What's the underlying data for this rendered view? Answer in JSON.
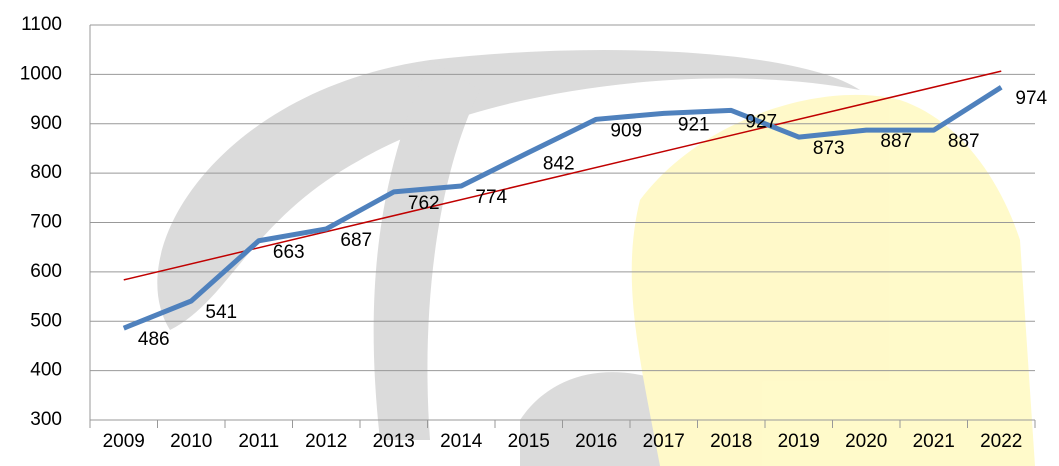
{
  "chart_data": {
    "type": "line",
    "categories": [
      "2009",
      "2010",
      "2011",
      "2012",
      "2013",
      "2014",
      "2015",
      "2016",
      "2017",
      "2018",
      "2019",
      "2020",
      "2021",
      "2022"
    ],
    "series": [
      {
        "color": "#4f81bd",
        "values": [
          486,
          541,
          663,
          687,
          762,
          774,
          842,
          909,
          921,
          927,
          873,
          887,
          887,
          974
        ]
      }
    ],
    "ylim": [
      300,
      1100
    ],
    "yticks": [
      300,
      400,
      500,
      600,
      700,
      800,
      900,
      1000,
      1100
    ],
    "grid": true,
    "data_labels": true,
    "trendline": true,
    "trendline_color": "#c00000"
  }
}
